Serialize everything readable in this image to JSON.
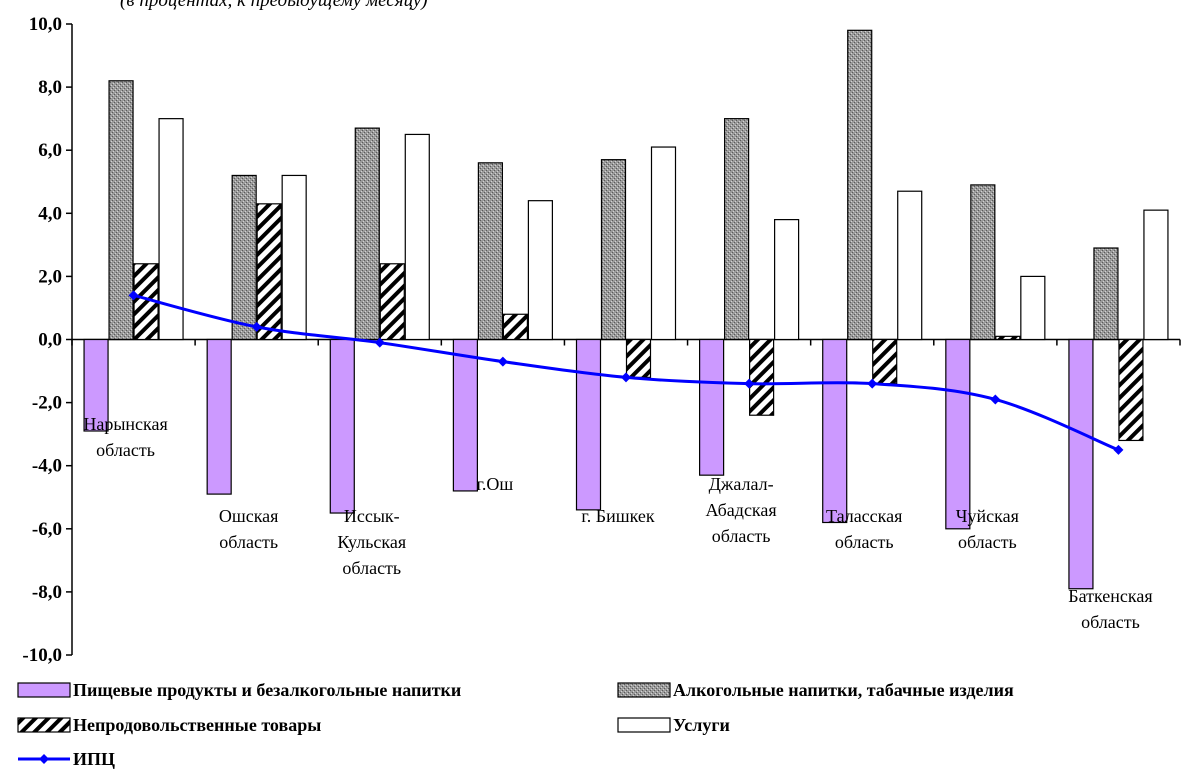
{
  "header_fragment": "(в процентах, к предыдущему месяцу)",
  "chart_data": {
    "type": "bar",
    "title": "",
    "xlabel": "",
    "ylabel": "",
    "ylim": [
      -10,
      10
    ],
    "ytick_step": 2,
    "grid": false,
    "legend_position": "bottom",
    "categories": [
      [
        "Нарынская",
        "область"
      ],
      [
        "Ошская",
        "область"
      ],
      [
        "Иссык-",
        "Кульская",
        "область"
      ],
      [
        "г.Ош"
      ],
      [
        "г. Бишкек"
      ],
      [
        "Джалал-",
        "Абадская",
        "область"
      ],
      [
        "Таласская",
        "область"
      ],
      [
        "Чуйская",
        "область"
      ],
      [
        "Баткенская",
        "область"
      ]
    ],
    "series": [
      {
        "name": "Пищевые продукты и безалкогольные напитки",
        "kind": "bar",
        "fill": "#cc99ff",
        "values": [
          -2.9,
          -4.9,
          -5.5,
          -4.8,
          -5.4,
          -4.3,
          -5.8,
          -6.0,
          -7.9
        ]
      },
      {
        "name": "Алкогольные напитки, табачные изделия",
        "kind": "bar",
        "fill": "#a6a6a6",
        "values": [
          8.2,
          5.2,
          6.7,
          5.6,
          5.7,
          7.0,
          9.8,
          4.9,
          2.9
        ]
      },
      {
        "name": "Непродовольственные товары",
        "kind": "bar",
        "fill": "hatch",
        "values": [
          2.4,
          4.3,
          2.4,
          0.8,
          -1.2,
          -2.4,
          -1.4,
          0.1,
          -3.2
        ]
      },
      {
        "name": "Услуги",
        "kind": "bar",
        "fill": "#ffffff",
        "values": [
          7.0,
          5.2,
          6.5,
          4.4,
          6.1,
          3.8,
          4.7,
          2.0,
          4.1
        ]
      },
      {
        "name": "ИПЦ",
        "kind": "line",
        "color": "#0000ff",
        "values": [
          1.4,
          0.4,
          -0.1,
          -0.7,
          -1.2,
          -1.4,
          -1.4,
          -1.9,
          -3.5
        ]
      }
    ]
  }
}
